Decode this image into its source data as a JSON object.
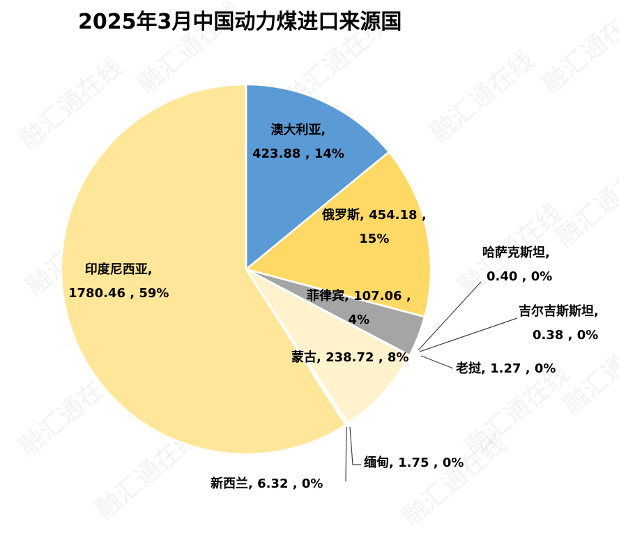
{
  "watermark_text": "融汇通在线",
  "chart_data": {
    "type": "pie",
    "title": "2025年3月中国动力煤进口来源国",
    "slices": [
      {
        "name": "澳大利亚",
        "value": 423.88,
        "pct": "14%",
        "color": "#5B9BD5",
        "value_label": "423.88",
        "line1": "澳大利亚,",
        "line2": "423.88 , 14%"
      },
      {
        "name": "俄罗斯",
        "value": 454.18,
        "pct": "15%",
        "color": "#FFD966",
        "value_label": "454.18",
        "line1": "俄罗斯, 454.18 ,",
        "line2": "15%"
      },
      {
        "name": "哈萨克斯坦",
        "value": 0.4,
        "pct": "0%",
        "color": "#A5A5A5",
        "value_label": "0.40",
        "line1": "哈萨克斯坦,",
        "line2": "0.40 , 0%"
      },
      {
        "name": "菲律宾",
        "value": 107.06,
        "pct": "4%",
        "color": "#A5A5A5",
        "value_label": "107.06",
        "line1": "菲律宾, 107.06 ,",
        "line2": "4%"
      },
      {
        "name": "吉尔吉斯斯坦",
        "value": 0.38,
        "pct": "0%",
        "color": "#A5A5A5",
        "value_label": "0.38",
        "line1": "吉尔吉斯斯坦,",
        "line2": "0.38 , 0%"
      },
      {
        "name": "老挝",
        "value": 1.27,
        "pct": "0%",
        "color": "#A5A5A5",
        "value_label": "1.27",
        "line1": "老挝, 1.27 , 0%"
      },
      {
        "name": "蒙古",
        "value": 238.72,
        "pct": "8%",
        "color": "#FFF2CC",
        "value_label": "238.72",
        "line1": "蒙古, 238.72 , 8%"
      },
      {
        "name": "缅甸",
        "value": 1.75,
        "pct": "0%",
        "color": "#FFE699",
        "value_label": "1.75",
        "line1": "缅甸, 1.75 , 0%"
      },
      {
        "name": "新西兰",
        "value": 6.32,
        "pct": "0%",
        "color": "#FFF2CC",
        "value_label": "6.32",
        "line1": "新西兰, 6.32 , 0%"
      },
      {
        "name": "印度尼西亚",
        "value": 1780.46,
        "pct": "59%",
        "color": "#FFE699",
        "value_label": "1780.46",
        "line1": "印度尼西亚,",
        "line2": "1780.46 , 59%"
      }
    ]
  }
}
